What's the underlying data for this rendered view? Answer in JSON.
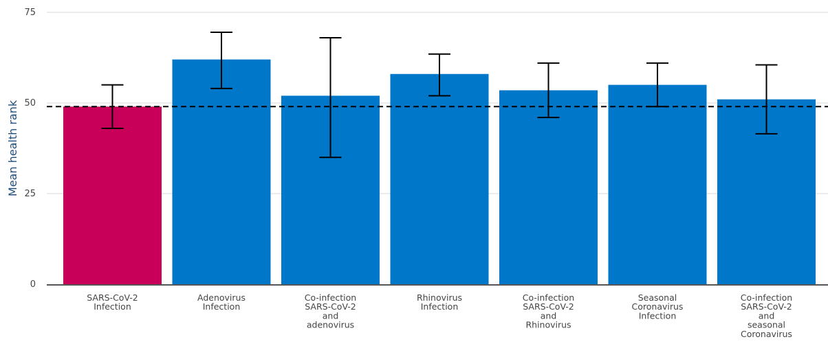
{
  "chart_data": {
    "type": "bar",
    "title": "",
    "xlabel": "",
    "ylabel": "Mean health rank",
    "ylim": [
      0,
      75
    ],
    "yticks": [
      0,
      25,
      50,
      75
    ],
    "grid": true,
    "legend": "none",
    "reference_line": {
      "value": 49,
      "style": "dashed",
      "color": "#000000"
    },
    "categories": [
      [
        "SARS-CoV-2",
        "Infection"
      ],
      [
        "Adenovirus",
        "Infection"
      ],
      [
        "Co-infection",
        "SARS-CoV-2",
        "and",
        "adenovirus"
      ],
      [
        "Rhinovirus",
        "Infection"
      ],
      [
        "Co-infection",
        "SARS-CoV-2",
        "and",
        "Rhinovirus"
      ],
      [
        "Seasonal",
        "Coronavirus",
        "Infection"
      ],
      [
        "Co-infection",
        "SARS-CoV-2",
        "and",
        "seasonal",
        "Coronavirus"
      ]
    ],
    "values": [
      49,
      62,
      52,
      58,
      53.5,
      55,
      51
    ],
    "error_lower": [
      43,
      54,
      35,
      52,
      46,
      49,
      41.5
    ],
    "error_upper": [
      55,
      69.5,
      68,
      63.5,
      61,
      61,
      60.5
    ],
    "colors": [
      "#c8005a",
      "#0077c8",
      "#0077c8",
      "#0077c8",
      "#0077c8",
      "#0077c8",
      "#0077c8"
    ]
  }
}
